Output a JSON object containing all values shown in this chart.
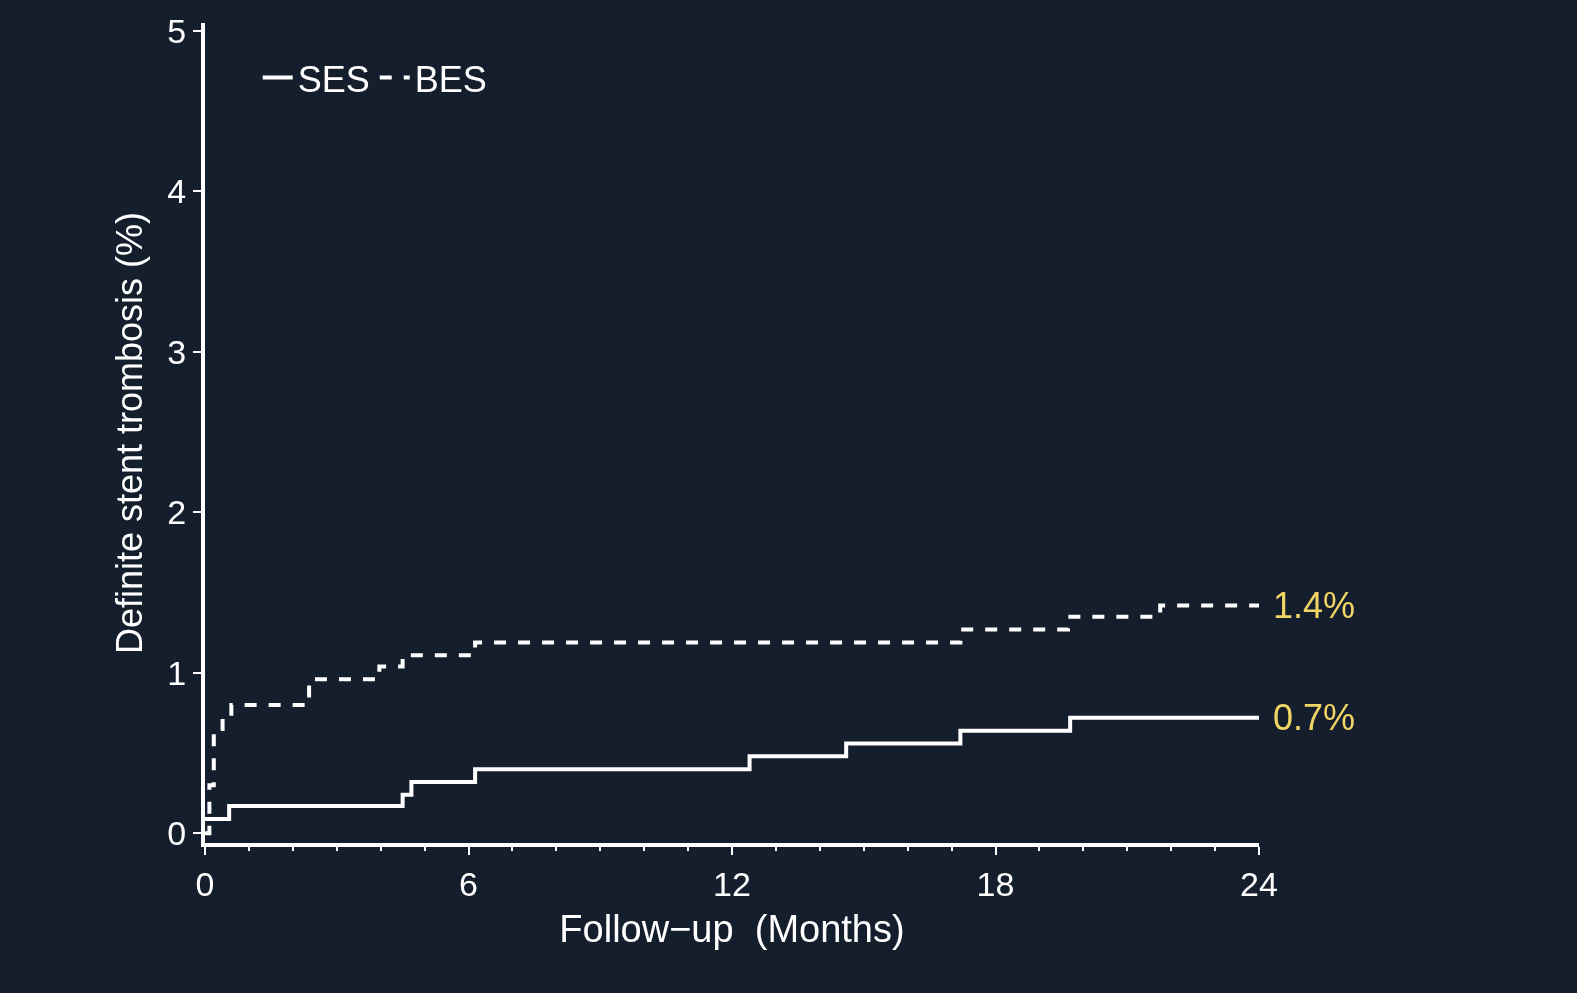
{
  "chart_data": {
    "type": "step",
    "xlabel": "Follow−up  (Months)",
    "ylabel": "Definite stent trombosis (%)",
    "xlim": [
      0,
      24
    ],
    "xticks": [
      0,
      6,
      12,
      18,
      24
    ],
    "ylim": [
      -0.06,
      5.05
    ],
    "yticks": [
      0,
      1,
      2,
      3,
      4,
      5
    ],
    "grid": false,
    "legend": "top left",
    "marker": "none",
    "series": [
      {
        "name": "SES",
        "color": "#ffffff",
        "line_style": "solid",
        "x": [
          0,
          0.55,
          4.5,
          4.7,
          6.15,
          12.4,
          14.6,
          17.2,
          19.7,
          24
        ],
        "values": [
          0.09,
          0.17,
          0.24,
          0.32,
          0.4,
          0.48,
          0.56,
          0.64,
          0.72,
          0.72
        ]
      },
      {
        "name": "BES",
        "color": "#ffffff",
        "line_style": "dashed",
        "x": [
          0,
          0.1,
          0.2,
          0.4,
          0.6,
          2.37,
          3.97,
          4.5,
          6.15,
          17.2,
          19.65,
          21.75,
          24
        ],
        "values": [
          0,
          0.3,
          0.65,
          0.73,
          0.8,
          0.96,
          1.04,
          1.11,
          1.19,
          1.27,
          1.35,
          1.42,
          1.42
        ]
      }
    ],
    "annotations": [
      {
        "text": "1.4%",
        "x": 24,
        "y": 1.42
      },
      {
        "text": "0.7%",
        "x": 24,
        "y": 0.72
      }
    ]
  }
}
